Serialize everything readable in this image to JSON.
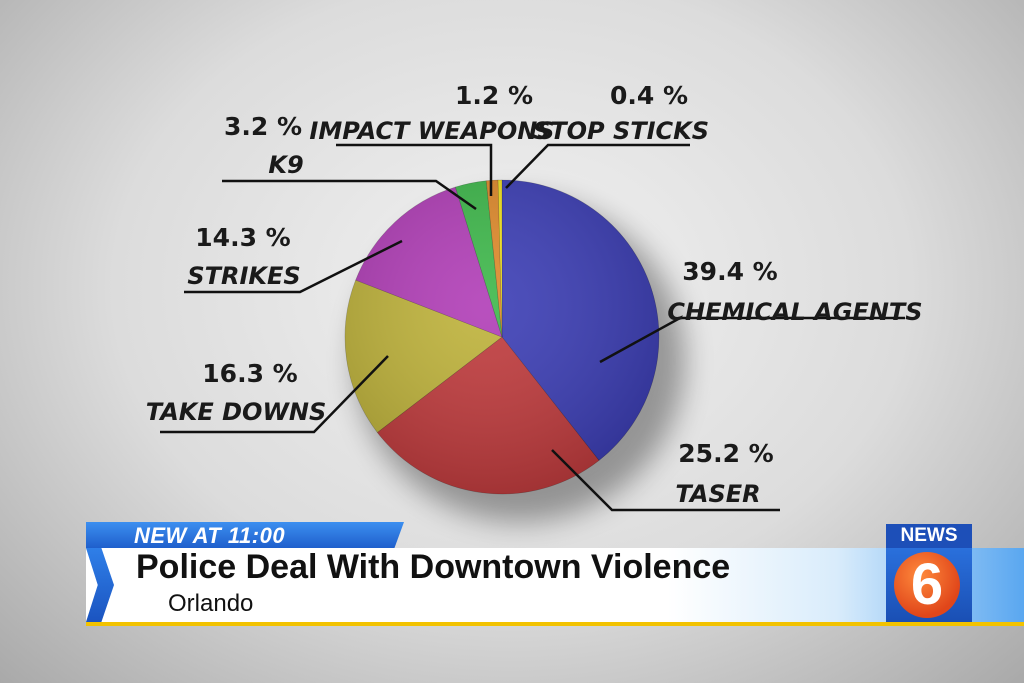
{
  "chart_data": {
    "type": "pie",
    "slices": [
      {
        "label": "CHEMICAL AGENTS",
        "pct_label": "39.4 %",
        "value": 39.4,
        "color": "#3b3db5"
      },
      {
        "label": "TASER",
        "pct_label": "25.2 %",
        "value": 25.2,
        "color": "#c03a3c"
      },
      {
        "label": "TAKE DOWNS",
        "pct_label": "16.3 %",
        "value": 16.3,
        "color": "#bfb33a"
      },
      {
        "label": "STRIKES",
        "pct_label": "14.3 %",
        "value": 14.3,
        "color": "#b13db7"
      },
      {
        "label": "K9",
        "pct_label": "3.2 %",
        "value": 3.2,
        "color": "#3db84a"
      },
      {
        "label": "IMPACT WEAPONS",
        "pct_label": "1.2 %",
        "value": 1.2,
        "color": "#e08a2a"
      },
      {
        "label": "STOP STICKS",
        "pct_label": "0.4 %",
        "value": 0.4,
        "color": "#f2e21e"
      }
    ]
  },
  "lower_third": {
    "tag": "NEW AT 11:00",
    "headline": "Police Deal With Downtown Violence",
    "location": "Orlando"
  },
  "logo": {
    "top_text": "NEWS",
    "number": "6",
    "top_color": "#1d4fb8",
    "circle_color": "#e0461a"
  }
}
